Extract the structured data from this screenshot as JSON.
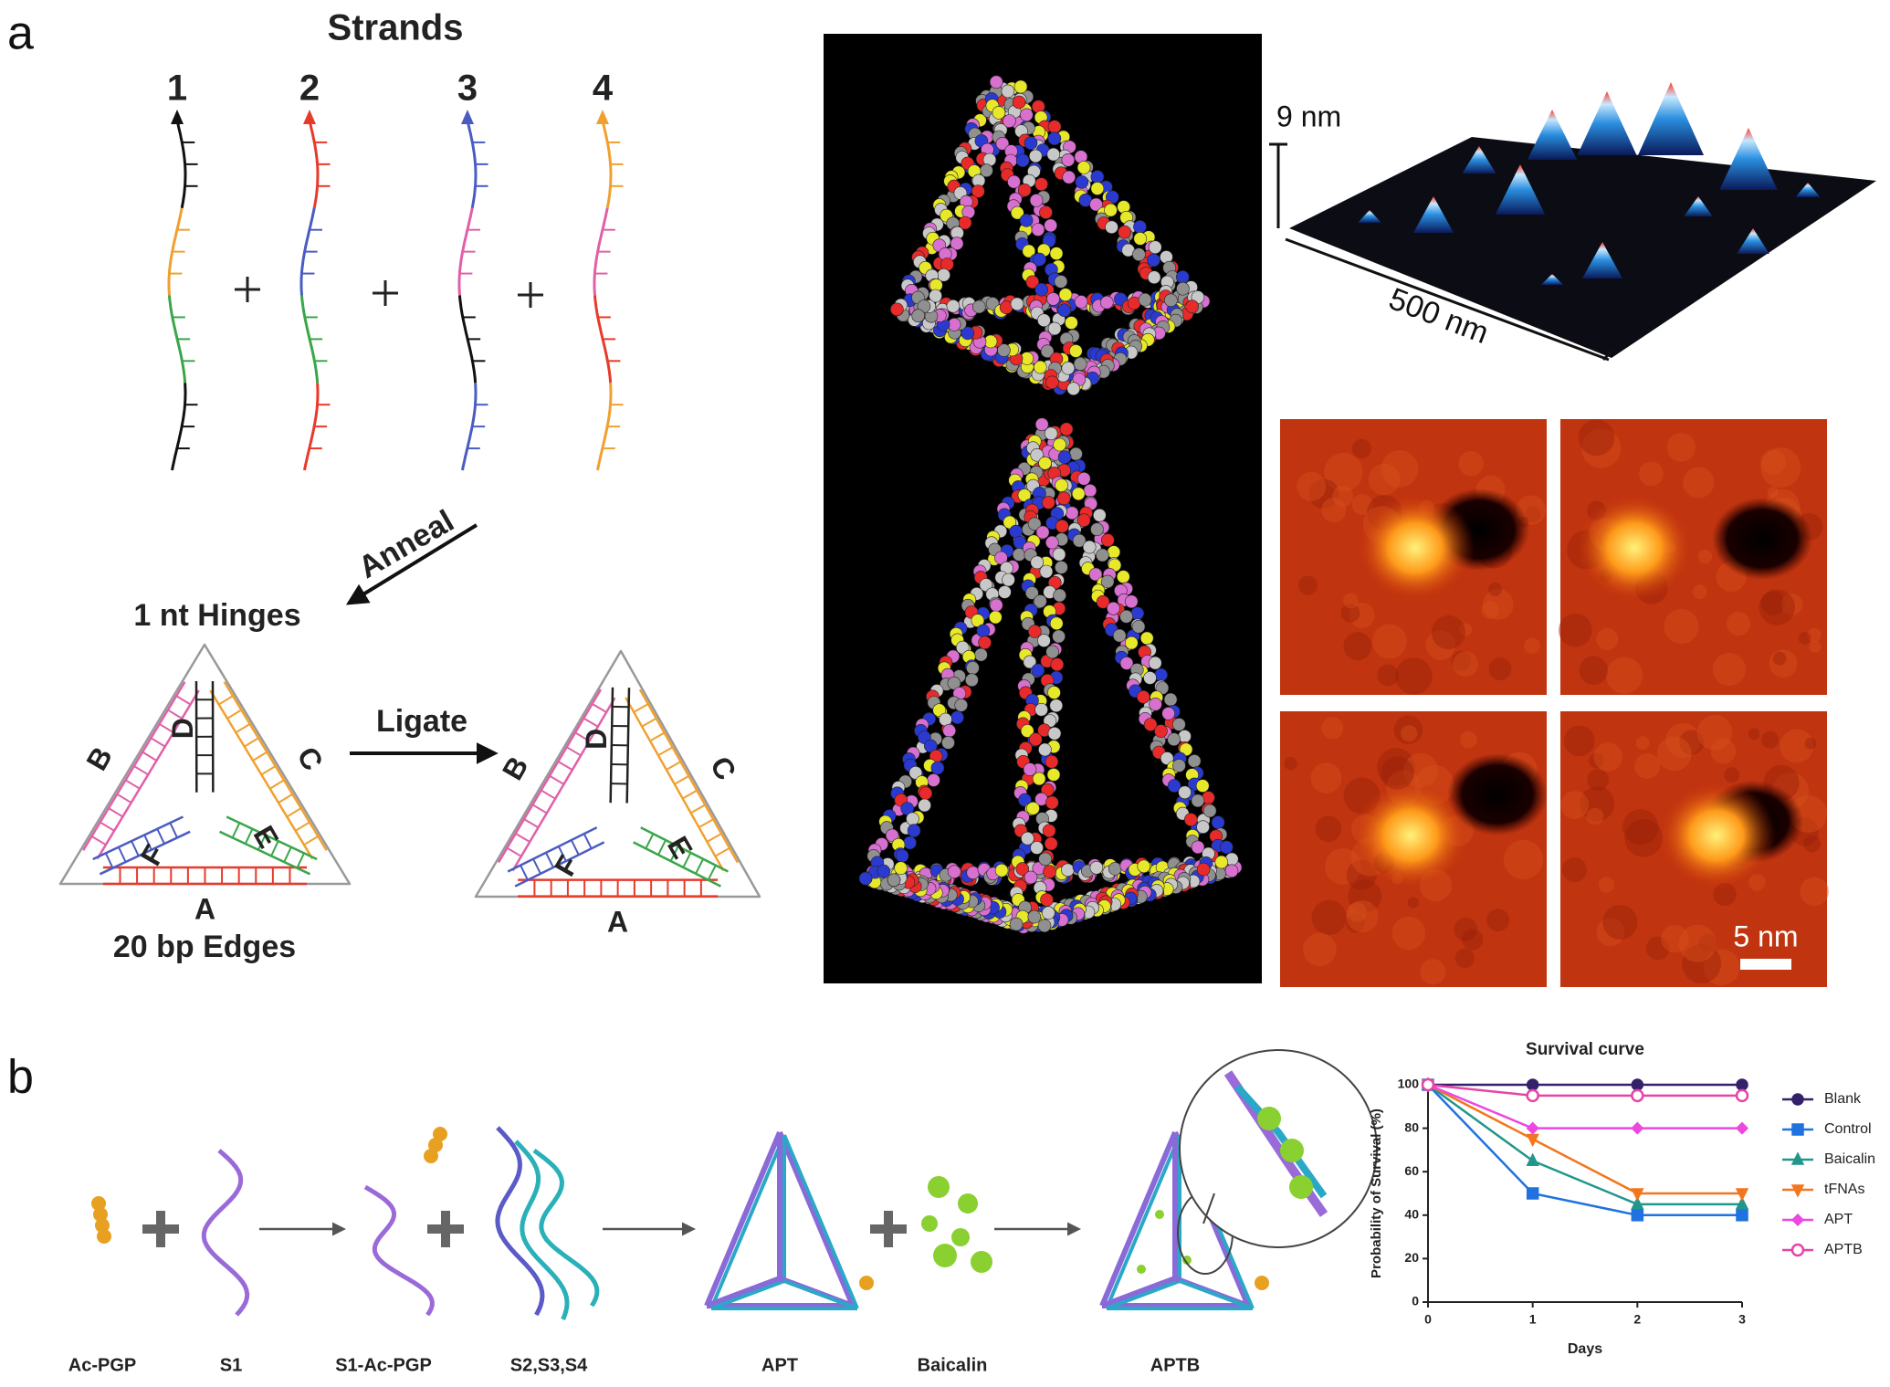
{
  "panel_a": {
    "label": "a",
    "strands_title": "Strands",
    "strand_numbers": [
      "1",
      "2",
      "3",
      "4"
    ],
    "anneal": "Anneal",
    "hinges": "1 nt Hinges",
    "ligate": "Ligate",
    "edges": "20 bp Edges",
    "triangle_1_letters": [
      "A",
      "B",
      "C",
      "D",
      "E",
      "F"
    ],
    "triangle_2_letters": [
      "A",
      "B",
      "C",
      "D",
      "E",
      "F"
    ],
    "afm_height": "9 nm",
    "afm_width": "500 nm",
    "scale_bar": "5 nm"
  },
  "panel_b": {
    "label": "b",
    "labels": [
      "Ac-PGP",
      "S1",
      "S1-Ac-PGP",
      "S2,S3,S4",
      "APT",
      "Baicalin",
      "APTB"
    ]
  },
  "chart_data": {
    "type": "line",
    "title": "Survival curve",
    "x_label": "Days",
    "y_label": "Probability of Survival (%)",
    "x": [
      0,
      1,
      2,
      3
    ],
    "xlim": [
      0,
      3
    ],
    "xticks": [
      0,
      1,
      2,
      3
    ],
    "ylim": [
      0,
      100
    ],
    "yticks": [
      0,
      20,
      40,
      60,
      80,
      100
    ],
    "legend": "right",
    "series": [
      {
        "name": "Blank",
        "color": "#35206b",
        "marker": "circle",
        "values": [
          100,
          100,
          100,
          100
        ]
      },
      {
        "name": "Control",
        "color": "#1f72e0",
        "marker": "square",
        "values": [
          100,
          50,
          40,
          40
        ]
      },
      {
        "name": "Baicalin",
        "color": "#23968c",
        "marker": "triangle",
        "values": [
          100,
          65,
          45,
          45
        ]
      },
      {
        "name": "tFNAs",
        "color": "#f2761d",
        "marker": "triangle-down",
        "values": [
          100,
          75,
          50,
          50
        ]
      },
      {
        "name": "APT",
        "color": "#ec48e0",
        "marker": "diamond",
        "values": [
          100,
          80,
          80,
          80
        ]
      },
      {
        "name": "APTB",
        "color": "#e645a8",
        "marker": "circle-open",
        "values": [
          100,
          95,
          95,
          95
        ]
      }
    ]
  }
}
